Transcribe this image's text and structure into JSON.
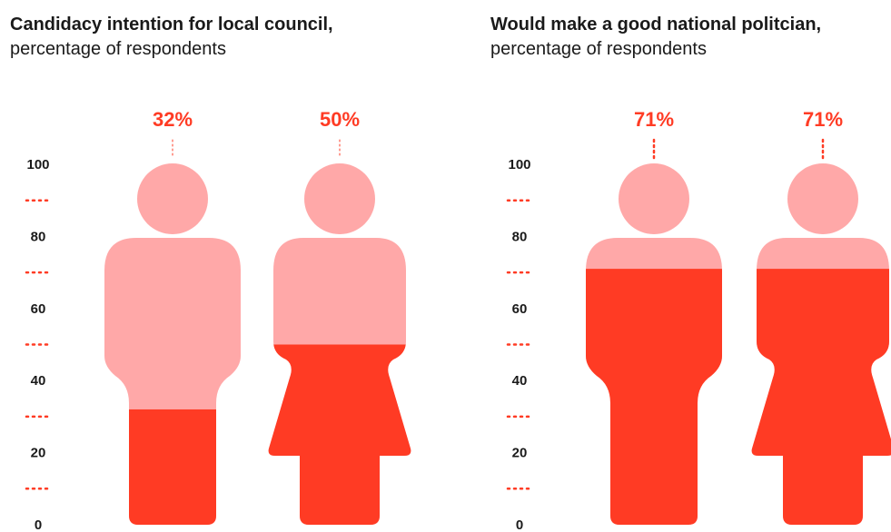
{
  "colors": {
    "light": "#ffa8a8",
    "dark": "#ff3b24",
    "text": "#1a1a1a"
  },
  "panels": [
    {
      "title_bold": "Candidacy intention for local council,",
      "title_rest": " percentage of respondents"
    },
    {
      "title_bold": "Would make a good national politcian,",
      "title_rest": " percentage of respondents"
    }
  ],
  "chart_data": [
    {
      "type": "bar",
      "title": "Candidacy intention for local council, percentage of respondents",
      "categories": [
        "male",
        "female"
      ],
      "values": [
        32,
        50
      ],
      "value_labels": [
        "32%",
        "50%"
      ],
      "yticks": [
        "0",
        "20",
        "40",
        "60",
        "80",
        "100"
      ],
      "ylim": [
        0,
        100
      ]
    },
    {
      "type": "bar",
      "title": "Would make a good national politcian, percentage of respondents",
      "categories": [
        "male",
        "female"
      ],
      "values": [
        71,
        71
      ],
      "value_labels": [
        "71%",
        "71%"
      ],
      "yticks": [
        "0",
        "20",
        "40",
        "60",
        "80",
        "100"
      ],
      "ylim": [
        0,
        100
      ]
    }
  ]
}
